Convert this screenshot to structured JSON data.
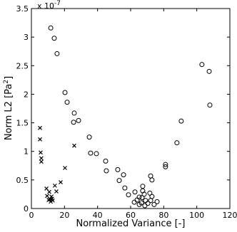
{
  "chart_data": {
    "type": "scatter",
    "xlabel": "Normalized Variance [-]",
    "ylabel": {
      "text": "Norm L2 [Pa",
      "sup": "2",
      "end": "]"
    },
    "exponent": {
      "base": "x 10",
      "power": "-7"
    },
    "xlim": [
      0,
      120
    ],
    "xticks": [
      0,
      20,
      40,
      60,
      80,
      100,
      120
    ],
    "ylim": [
      0,
      3.5
    ],
    "yticks": [
      0,
      0.5,
      1,
      1.5,
      2,
      2.5,
      3,
      3.5
    ],
    "grid": false,
    "series": [
      {
        "marker": "circle",
        "color": "#000000",
        "x": [
          11.7,
          13.8,
          15.5,
          20.3,
          21.6,
          25.9,
          28.5,
          25.5,
          35.0,
          35.8,
          39.3,
          44.9,
          45.3,
          52.2,
          53.1,
          55.7,
          56.5,
          58.7,
          62.6,
          65.2,
          63.9,
          67.3,
          67.3,
          68.2,
          66.9,
          69.0,
          66.5,
          70.4,
          72.1,
          72.9,
          71.6,
          74.2,
          68.6,
          65.2,
          62.2,
          76.0,
          72.1,
          72.9,
          81.1,
          81.1,
          88.0,
          90.6,
          103.1,
          107.5,
          107.9
        ],
        "values": [
          3.16,
          2.98,
          2.71,
          2.03,
          1.86,
          1.67,
          1.54,
          1.51,
          1.25,
          0.97,
          0.96,
          0.83,
          0.66,
          0.68,
          0.49,
          0.59,
          0.36,
          0.24,
          0.29,
          0.2,
          0.15,
          0.39,
          0.31,
          0.25,
          0.19,
          0.14,
          0.1,
          0.09,
          0.14,
          0.21,
          0.27,
          0.07,
          0.05,
          0.07,
          0.11,
          0.12,
          0.57,
          0.5,
          0.77,
          0.73,
          1.15,
          1.53,
          2.52,
          2.4,
          1.81
        ]
      },
      {
        "marker": "x",
        "color": "#000000",
        "x": [
          5.2,
          5.2,
          5.6,
          6.0,
          6.0,
          25.9,
          20.3,
          17.7,
          14.2,
          9.1,
          10.8,
          15.1,
          9.5,
          12.1,
          11.2,
          12.5,
          12.9,
          10.4,
          11.7
        ],
        "values": [
          1.41,
          1.21,
          0.98,
          0.88,
          0.82,
          1.1,
          0.71,
          0.46,
          0.4,
          0.35,
          0.29,
          0.3,
          0.22,
          0.21,
          0.16,
          0.17,
          0.14,
          0.15,
          0.12
        ]
      }
    ]
  }
}
